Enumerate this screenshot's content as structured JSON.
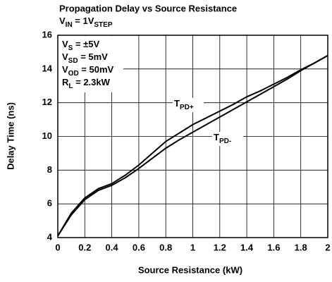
{
  "chart_data": {
    "type": "line",
    "title": "Propagation Delay vs Source Resistance",
    "subtitle": [
      "V",
      "IN",
      " = 1V",
      "STEP"
    ],
    "annotations": [
      [
        "V",
        "S",
        " = ±5V"
      ],
      [
        "V",
        "SD",
        " = 5mV"
      ],
      [
        "V",
        "OD",
        " = 50mV"
      ],
      [
        "R",
        "L",
        " = 2.3kW"
      ]
    ],
    "x_label": "Source Resistance (kW)",
    "y_label": "Delay Time (ns)",
    "x": [
      0,
      0.1,
      0.2,
      0.3,
      0.4,
      0.5,
      0.6,
      0.7,
      0.8,
      0.9,
      1.0,
      1.1,
      1.2,
      1.3,
      1.4,
      1.5,
      1.6,
      1.7,
      1.8,
      1.9,
      2.0
    ],
    "series": [
      {
        "name": [
          "T",
          "PD+"
        ],
        "color": "#000000",
        "values": [
          4.1,
          5.45,
          6.35,
          6.9,
          7.2,
          7.7,
          8.3,
          9.0,
          9.7,
          10.2,
          10.7,
          11.1,
          11.5,
          11.9,
          12.35,
          12.7,
          13.1,
          13.5,
          13.95,
          14.35,
          14.8
        ]
      },
      {
        "name": [
          "T",
          "PD-"
        ],
        "color": "#000000",
        "values": [
          4.1,
          5.35,
          6.25,
          6.8,
          7.1,
          7.55,
          8.1,
          8.7,
          9.3,
          9.8,
          10.25,
          10.7,
          11.15,
          11.6,
          12.05,
          12.5,
          12.95,
          13.4,
          13.9,
          14.35,
          14.8
        ]
      }
    ],
    "xlim": [
      0,
      2
    ],
    "xticks": [
      0,
      0.2,
      0.4,
      0.6,
      0.8,
      1,
      1.2,
      1.4,
      1.6,
      1.8,
      2
    ],
    "ylim": [
      4,
      16
    ],
    "yticks": [
      4,
      6,
      8,
      10,
      12,
      14,
      16
    ],
    "grid": true
  }
}
